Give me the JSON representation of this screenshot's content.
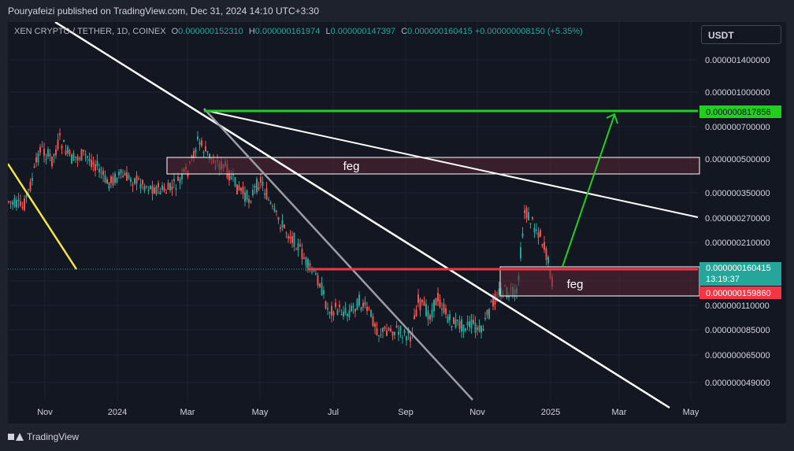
{
  "header": {
    "publisher": "Pouryafeizi published on TradingView.com, Dec 31, 2024 14:10 UTC+3:30"
  },
  "symbol": {
    "name": "XEN CRYPTO / TETHER, 1D, COINEX",
    "o_label": "O",
    "o": "0.000000152310",
    "h_label": "H",
    "h": "0.000000161974",
    "l_label": "L",
    "l": "0.000000147397",
    "c_label": "C",
    "c": "0.000000160415",
    "change": "+0.000000008150 (+5.35%)"
  },
  "currency_button": "USDT",
  "price_axis": [
    "0.000001400000",
    "0.000001000000",
    "0.000000700000",
    "0.000000500000",
    "0.000000350000",
    "0.000000270000",
    "0.000000210000",
    "0.000000110000",
    "0.000000085000",
    "0.000000065000",
    "0.000000049000"
  ],
  "price_badges": {
    "target": "0.000000817856",
    "current": "0.000000160415",
    "countdown": "13:19:37",
    "support": "0.000000159860"
  },
  "time_axis": [
    "Nov",
    "2024",
    "Mar",
    "May",
    "Jul",
    "Sep",
    "Nov",
    "2025",
    "Mar",
    "May"
  ],
  "zone_labels": [
    "feg",
    "feg"
  ],
  "colors": {
    "up": "#26a69a",
    "down": "#ef5350",
    "target_line": "#21d01f",
    "support_line": "#f23645",
    "zone_fill": "#5a2633",
    "trendline": "#ffffff",
    "gray_line": "#9a9ca6",
    "yellow_line": "#f5e642"
  },
  "footer": {
    "brand": "TradingView"
  }
}
